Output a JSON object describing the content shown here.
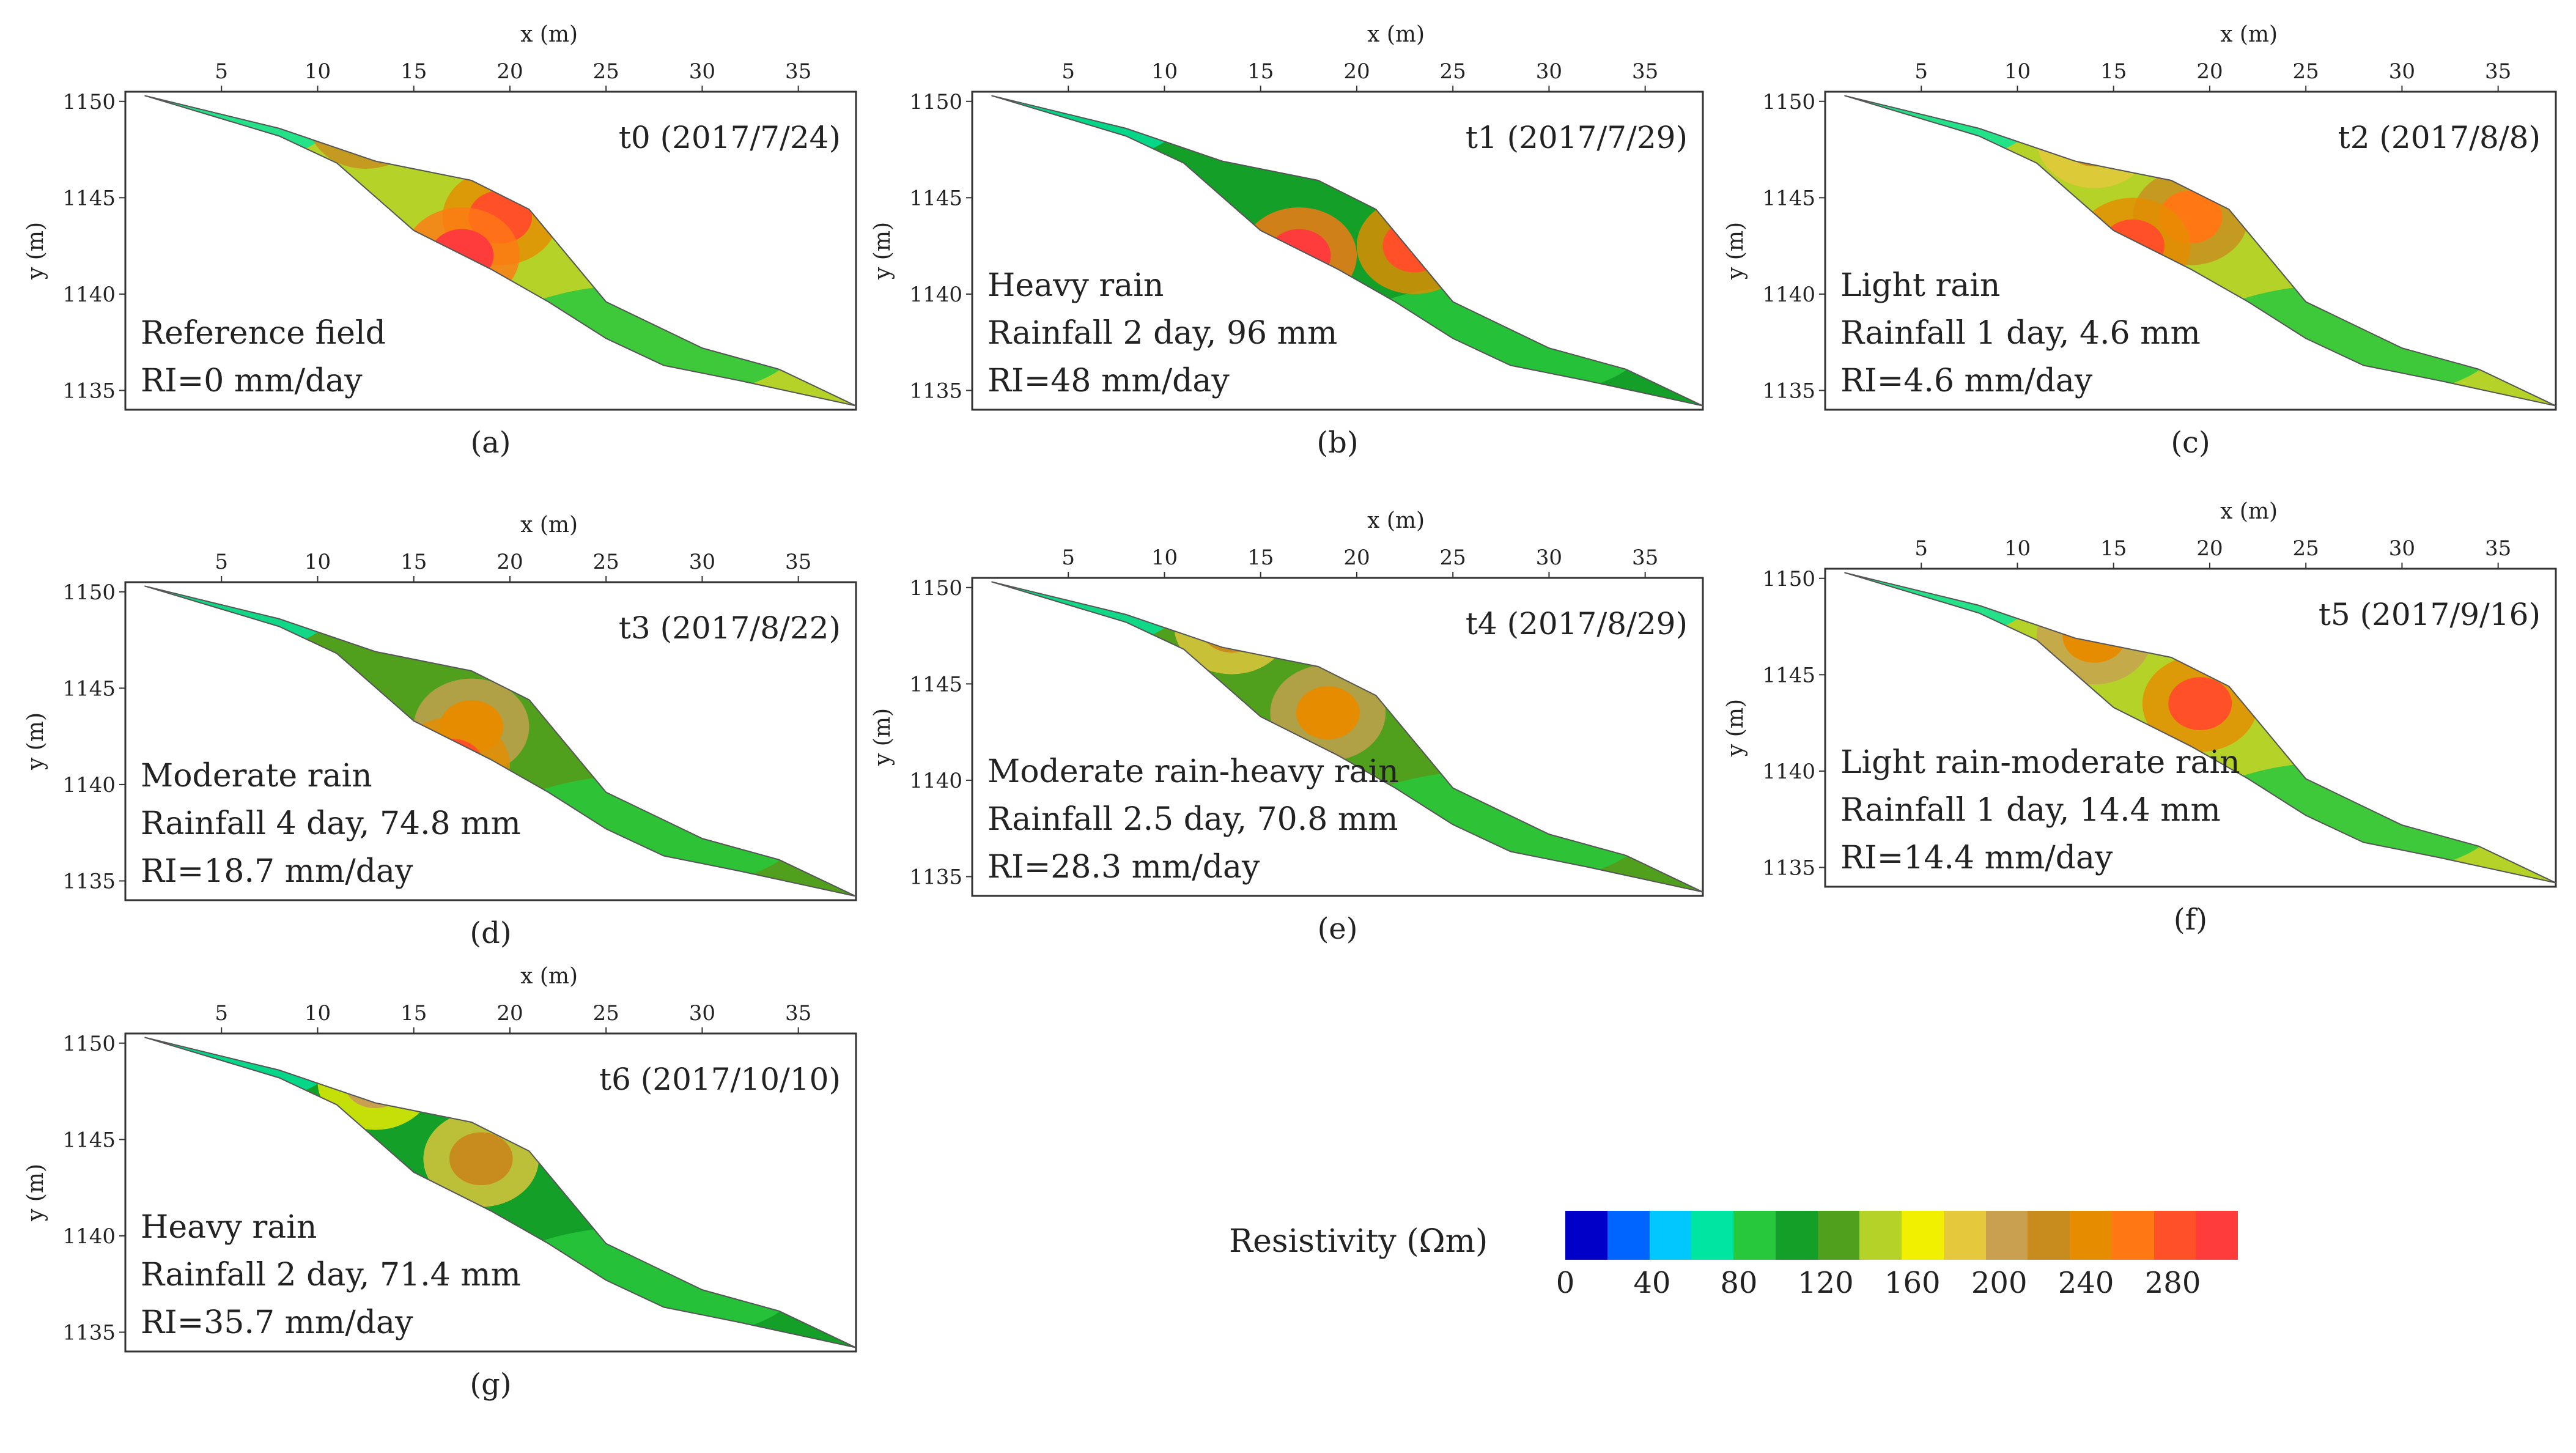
{
  "chart_data": [
    {
      "type": "heatmap",
      "id": "a",
      "panel": "(a)",
      "time_label": "t0 (2017/7/24)",
      "annotation": [
        "Reference field",
        "RI=0 mm/day"
      ],
      "xlabel": "x (m)",
      "ylabel": "y (m)",
      "xlim": [
        0,
        38
      ],
      "ylim": [
        1134,
        1150.5
      ],
      "x_ticks": [
        5,
        10,
        15,
        20,
        25,
        30,
        35
      ],
      "y_ticks": [
        1150,
        1145,
        1140,
        1135
      ],
      "hotspots": [
        {
          "x": 19.5,
          "y": 1144,
          "value": 280
        },
        {
          "x": 17.5,
          "y": 1142,
          "value": 300
        },
        {
          "x": 12.5,
          "y": 1149,
          "value": 270
        }
      ],
      "base_level": 150
    },
    {
      "type": "heatmap",
      "id": "b",
      "panel": "(b)",
      "time_label": "t1 (2017/7/29)",
      "annotation": [
        "Heavy rain",
        "Rainfall 2 day, 96 mm",
        "RI=48 mm/day"
      ],
      "xlabel": "x (m)",
      "ylabel": "y (m)",
      "xlim": [
        0,
        38
      ],
      "ylim": [
        1134,
        1150.5
      ],
      "x_ticks": [
        5,
        10,
        15,
        20,
        25,
        30,
        35
      ],
      "y_ticks": [
        1150,
        1145,
        1140,
        1135
      ],
      "hotspots": [
        {
          "x": 17,
          "y": 1142,
          "value": 300
        },
        {
          "x": 23,
          "y": 1142.5,
          "value": 280
        }
      ],
      "base_level": 105
    },
    {
      "type": "heatmap",
      "id": "c",
      "panel": "(c)",
      "time_label": "t2 (2017/8/8)",
      "annotation": [
        "Light rain",
        "Rainfall 1 day, 4.6 mm",
        "RI=4.6 mm/day"
      ],
      "xlabel": "x (m)",
      "ylabel": "y (m)",
      "xlim": [
        0,
        38
      ],
      "ylim": [
        1134,
        1150.5
      ],
      "x_ticks": [
        5,
        10,
        15,
        20,
        25,
        30,
        35
      ],
      "y_ticks": [
        1150,
        1145,
        1140,
        1135
      ],
      "hotspots": [
        {
          "x": 19,
          "y": 1144,
          "value": 260
        },
        {
          "x": 16,
          "y": 1142.5,
          "value": 290
        },
        {
          "x": 14,
          "y": 1148,
          "value": 230
        }
      ],
      "base_level": 140
    },
    {
      "type": "heatmap",
      "id": "d",
      "panel": "(d)",
      "time_label": "t3 (2017/8/22)",
      "annotation": [
        "Moderate rain",
        "Rainfall 4 day, 74.8 mm",
        "RI=18.7 mm/day"
      ],
      "xlabel": "x (m)",
      "ylabel": "y (m)",
      "xlim": [
        0,
        38
      ],
      "ylim": [
        1134,
        1150.5
      ],
      "x_ticks": [
        5,
        10,
        15,
        20,
        25,
        30,
        35
      ],
      "y_ticks": [
        1150,
        1145,
        1140,
        1135
      ],
      "hotspots": [
        {
          "x": 18,
          "y": 1143,
          "value": 250
        },
        {
          "x": 17,
          "y": 1141,
          "value": 290
        }
      ],
      "base_level": 130
    },
    {
      "type": "heatmap",
      "id": "e",
      "panel": "(e)",
      "time_label": "t4 (2017/8/29)",
      "annotation": [
        "Moderate rain-heavy rain",
        "Rainfall 2.5 day, 70.8 mm",
        "RI=28.3 mm/day"
      ],
      "xlabel": "x (m)",
      "ylabel": "y (m)",
      "xlim": [
        0,
        38
      ],
      "ylim": [
        1134,
        1150.5
      ],
      "x_ticks": [
        5,
        10,
        15,
        20,
        25,
        30,
        35
      ],
      "y_ticks": [
        1150,
        1145,
        1140,
        1135
      ],
      "hotspots": [
        {
          "x": 18.5,
          "y": 1143.5,
          "value": 240
        },
        {
          "x": 13.5,
          "y": 1148,
          "value": 220
        }
      ],
      "base_level": 125
    },
    {
      "type": "heatmap",
      "id": "f",
      "panel": "(f)",
      "time_label": "t5 (2017/9/16)",
      "annotation": [
        "Light rain-moderate rain",
        "Rainfall 1 day, 14.4 mm",
        "RI=14.4 mm/day"
      ],
      "xlabel": "x (m)",
      "ylabel": "y (m)",
      "xlim": [
        0,
        38
      ],
      "ylim": [
        1134,
        1150.5
      ],
      "x_ticks": [
        5,
        10,
        15,
        20,
        25,
        30,
        35
      ],
      "y_ticks": [
        1150,
        1145,
        1140,
        1135
      ],
      "hotspots": [
        {
          "x": 19.5,
          "y": 1143.5,
          "value": 290
        },
        {
          "x": 14,
          "y": 1147,
          "value": 240
        }
      ],
      "base_level": 140
    },
    {
      "type": "heatmap",
      "id": "g",
      "panel": "(g)",
      "time_label": "t6 (2017/10/10)",
      "annotation": [
        "Heavy rain",
        "Rainfall 2 day, 71.4 mm",
        "RI=35.7 mm/day"
      ],
      "xlabel": "x (m)",
      "ylabel": "y (m)",
      "xlim": [
        0,
        38
      ],
      "ylim": [
        1134,
        1150.5
      ],
      "x_ticks": [
        5,
        10,
        15,
        20,
        25,
        30,
        35
      ],
      "y_ticks": [
        1150,
        1145,
        1140,
        1135
      ],
      "hotspots": [
        {
          "x": 18.5,
          "y": 1144,
          "value": 220
        },
        {
          "x": 13,
          "y": 1148,
          "value": 200
        }
      ],
      "base_level": 115
    }
  ],
  "legend": {
    "title": "Resistivity (Ωm)",
    "ticks": [
      0,
      40,
      80,
      120,
      160,
      200,
      240,
      280
    ],
    "range": [
      0,
      310
    ],
    "colors": [
      "#0000c8",
      "#0064ff",
      "#00c8ff",
      "#00e6a0",
      "#28c83c",
      "#14a028",
      "#50a01e",
      "#b4d228",
      "#f0f000",
      "#e6c83c",
      "#c8a050",
      "#c88c1e",
      "#e68c00",
      "#ff7814",
      "#ff5028",
      "#ff3c3c"
    ]
  }
}
